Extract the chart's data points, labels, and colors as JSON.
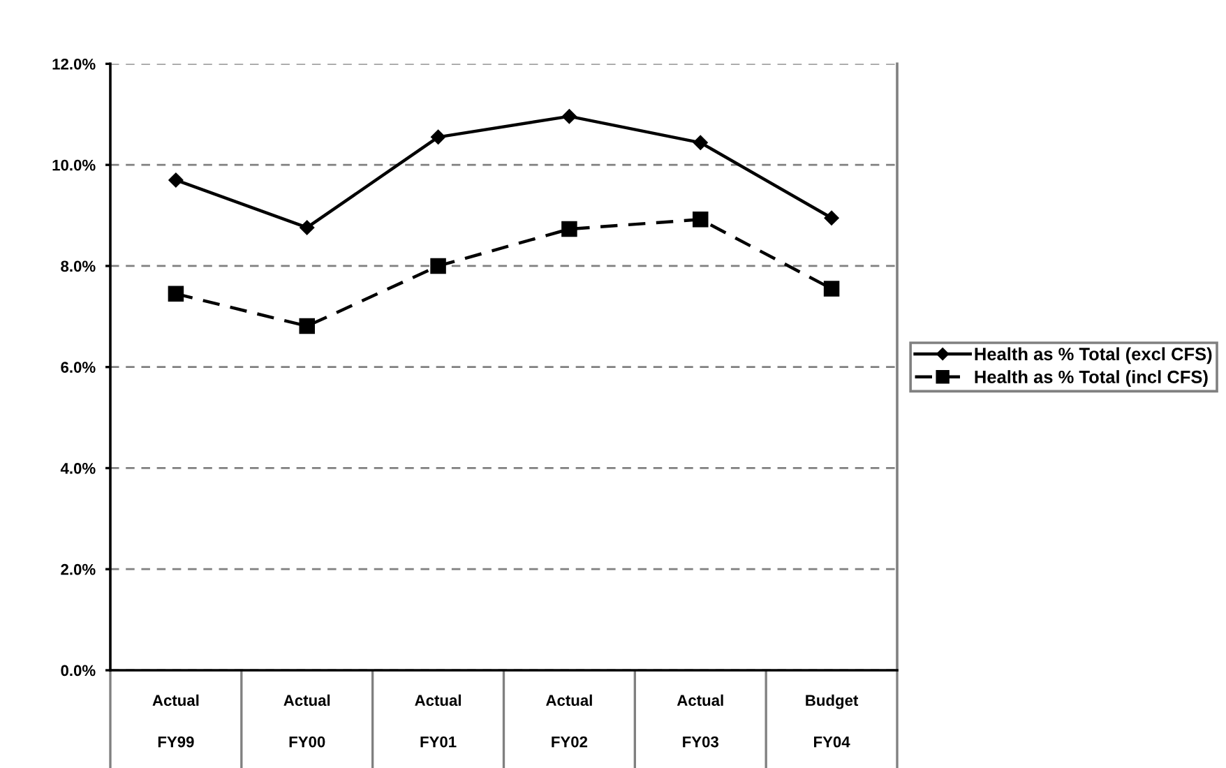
{
  "chart_data": {
    "type": "line",
    "categories": [
      "Actual\nFY99",
      "Actual\nFY00",
      "Actual\nFY01",
      "Actual\nFY02",
      "Actual\nFY03",
      "Budget\nFY04"
    ],
    "series": [
      {
        "name": "Health as % Total (excl CFS)",
        "color": "#000000",
        "marker": "diamond",
        "line_style": "solid",
        "values": [
          9.7,
          8.76,
          10.55,
          10.96,
          10.44,
          8.95
        ]
      },
      {
        "name": "Health as % Total (incl CFS)",
        "color": "#000000",
        "marker": "square",
        "line_style": "dashed",
        "values": [
          7.45,
          6.81,
          8.0,
          8.73,
          8.92,
          7.55
        ]
      }
    ],
    "ylim": [
      0,
      12
    ],
    "yticks": [
      {
        "value": 0,
        "label": "0.0%"
      },
      {
        "value": 2,
        "label": "2.0%"
      },
      {
        "value": 4,
        "label": "4.0%"
      },
      {
        "value": 6,
        "label": "6.0%"
      },
      {
        "value": 8,
        "label": "8.0%"
      },
      {
        "value": 10,
        "label": "10.0%"
      },
      {
        "value": 12,
        "label": "12.0%"
      }
    ],
    "grid": "y",
    "legend": "right"
  }
}
